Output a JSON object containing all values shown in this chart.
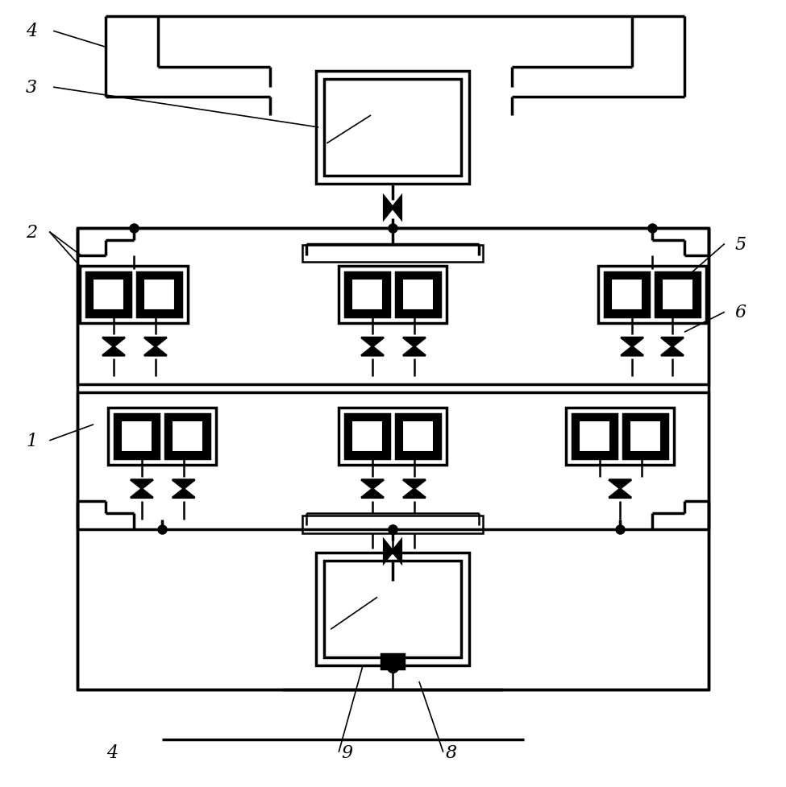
{
  "bg_color": "#ffffff",
  "lc": "#000000",
  "tlw": 2.5,
  "mlw": 1.8,
  "nlw": 1.2,
  "fig_w": 9.75,
  "fig_h": 9.78
}
